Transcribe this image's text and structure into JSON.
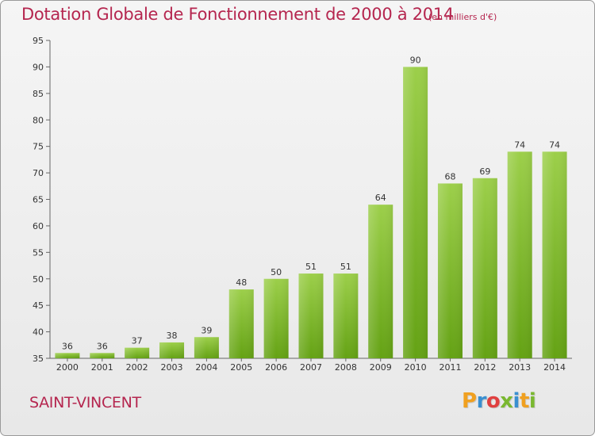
{
  "chart_data": {
    "type": "bar",
    "title": "Dotation Globale de Fonctionnement de 2000 à 2014",
    "subtitle": "(en milliers d'€)",
    "categories": [
      "2000",
      "2001",
      "2002",
      "2003",
      "2004",
      "2005",
      "2006",
      "2007",
      "2008",
      "2009",
      "2010",
      "2011",
      "2012",
      "2013",
      "2014"
    ],
    "values": [
      36,
      36,
      37,
      38,
      39,
      48,
      50,
      51,
      51,
      64,
      90,
      68,
      69,
      74,
      74
    ],
    "xlabel": "",
    "ylabel": "",
    "ylim": [
      35,
      95
    ],
    "yticks": [
      35,
      40,
      45,
      50,
      55,
      60,
      65,
      70,
      75,
      80,
      85,
      90,
      95
    ],
    "grid": false,
    "bar_color": "#8cc43c"
  },
  "commune": "SAINT-VINCENT",
  "logo": {
    "letters": [
      "P",
      "r",
      "o",
      "x",
      "i",
      "t",
      "i"
    ],
    "colors": [
      "#f0a020",
      "#3a8fd0",
      "#e04040",
      "#7ab830",
      "#3a8fd0",
      "#f0a020",
      "#7ab830"
    ]
  }
}
